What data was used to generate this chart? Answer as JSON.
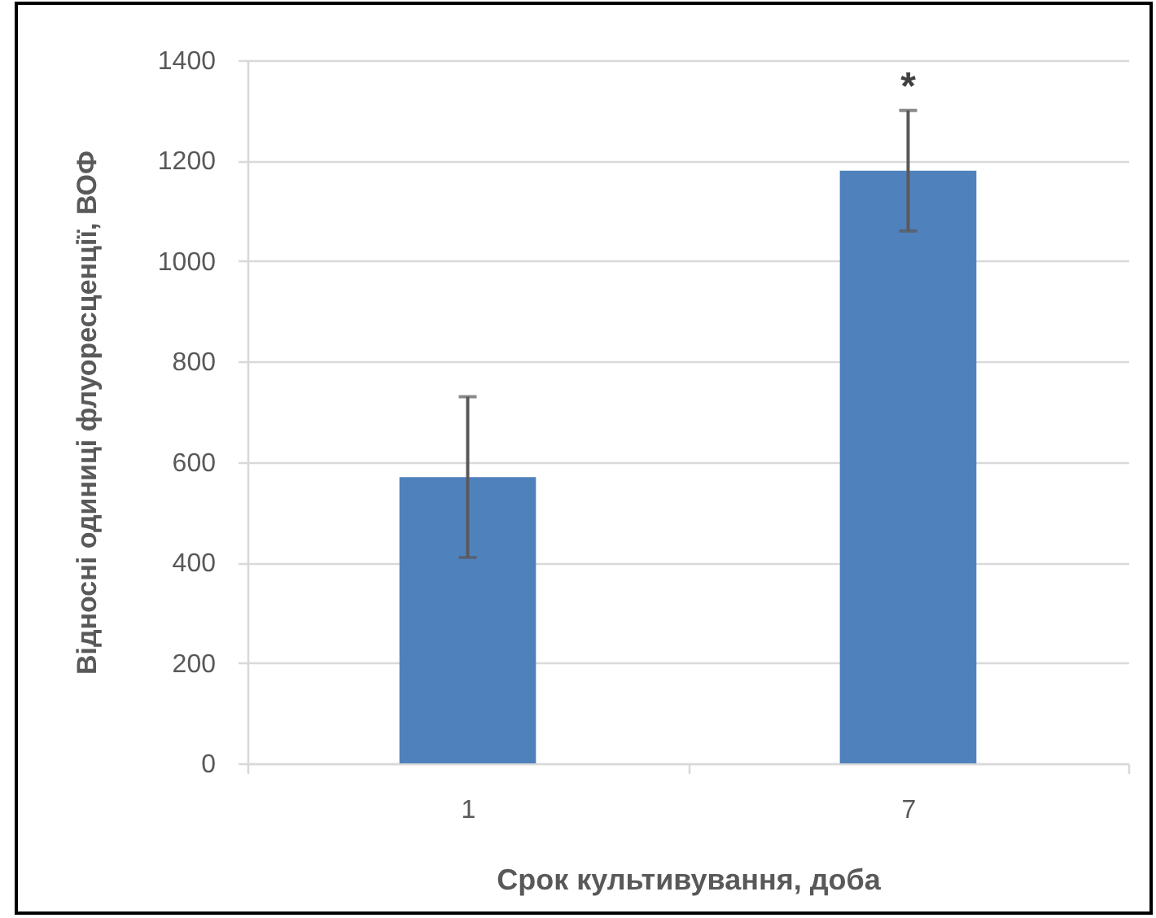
{
  "chart_data": {
    "type": "bar",
    "categories": [
      "1",
      "7"
    ],
    "values": [
      570,
      1180
    ],
    "errors": [
      160,
      120
    ],
    "color": "#4f81bd",
    "xlabel": "Срок культивування, доба",
    "ylabel": "Відносні одиниці флуоресценції, ВОФ",
    "ylim": [
      0,
      1400
    ],
    "yticks": [
      0,
      200,
      400,
      600,
      800,
      1000,
      1200,
      1400
    ],
    "grid": "y",
    "annotations": [
      {
        "text": "*",
        "x": "7",
        "y": 1300
      }
    ]
  }
}
